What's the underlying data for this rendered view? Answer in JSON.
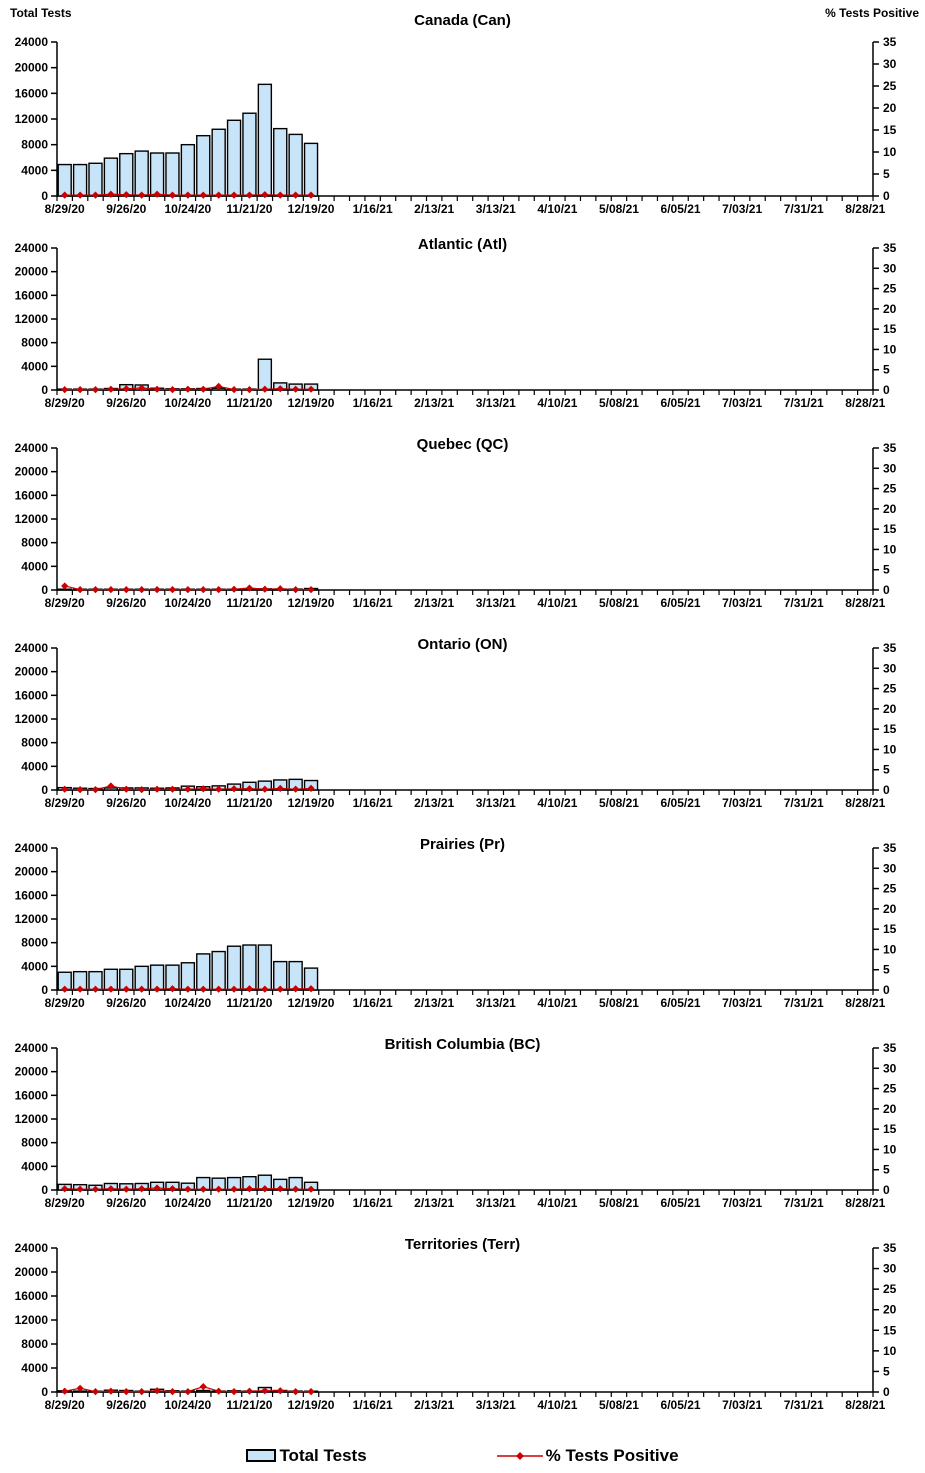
{
  "figure": {
    "left_axis_title": "Total Tests",
    "right_axis_title": "% Tests Positive",
    "legend": {
      "bars_label": "Total Tests",
      "line_label": "% Tests Positive"
    },
    "colors": {
      "bar_fill": "#C8E4F8",
      "bar_stroke": "#000000",
      "line": "#CC0000",
      "axis": "#000000",
      "text": "#000000"
    }
  },
  "axes": {
    "x_tick_labels": [
      "8/29/20",
      "9/26/20",
      "10/24/20",
      "11/21/20",
      "12/19/20",
      "1/16/21",
      "2/13/21",
      "3/13/21",
      "4/10/21",
      "5/08/21",
      "6/05/21",
      "7/03/21",
      "7/31/21",
      "8/28/21"
    ],
    "weeks_total": 53,
    "label_every_weeks": 4,
    "data_weeks": [
      "8/29/20",
      "9/05/20",
      "9/12/20",
      "9/19/20",
      "9/26/20",
      "10/03/20",
      "10/10/20",
      "10/17/20",
      "10/24/20",
      "10/31/20",
      "11/07/20",
      "11/14/20",
      "11/21/20",
      "11/28/20",
      "12/05/20",
      "12/12/20",
      "12/19/20"
    ],
    "y_left": {
      "title": "Total Tests",
      "min": 0,
      "max": 24000,
      "step": 4000
    },
    "y_right": {
      "title": "% Tests Positive",
      "min": 0,
      "max": 35,
      "step": 5
    },
    "grid": false
  },
  "chart_data": [
    {
      "type": "bar+line",
      "title": "Canada (Can)",
      "series": [
        {
          "name": "Total Tests",
          "type": "bar",
          "axis": "left",
          "values": [
            4900,
            4900,
            5100,
            5900,
            6600,
            7000,
            6700,
            6700,
            8000,
            9400,
            10400,
            11800,
            12900,
            17400,
            10500,
            9600,
            8200
          ]
        },
        {
          "name": "% Tests Positive",
          "type": "line",
          "axis": "right",
          "values": [
            0.2,
            0.2,
            0.2,
            0.4,
            0.3,
            0.2,
            0.4,
            0.2,
            0.2,
            0.2,
            0.2,
            0.2,
            0.2,
            0.3,
            0.2,
            0.2,
            0.2
          ]
        }
      ]
    },
    {
      "type": "bar+line",
      "title": "Atlantic (Atl)",
      "series": [
        {
          "name": "Total Tests",
          "type": "bar",
          "axis": "left",
          "values": [
            150,
            150,
            150,
            250,
            900,
            850,
            300,
            200,
            200,
            250,
            300,
            150,
            150,
            5200,
            1200,
            1000,
            1000
          ]
        },
        {
          "name": "% Tests Positive",
          "type": "line",
          "axis": "right",
          "values": [
            0.1,
            0.1,
            0.1,
            0.2,
            0.3,
            0.5,
            0.2,
            0.1,
            0.2,
            0.2,
            0.9,
            0.1,
            0.1,
            0.2,
            0.3,
            0.2,
            0.2
          ]
        }
      ]
    },
    {
      "type": "bar+line",
      "title": "Quebec (QC)",
      "series": [
        {
          "name": "Total Tests",
          "type": "bar",
          "axis": "left",
          "values": [
            100,
            80,
            80,
            80,
            80,
            80,
            80,
            80,
            80,
            80,
            80,
            100,
            200,
            200,
            150,
            150,
            250
          ]
        },
        {
          "name": "% Tests Positive",
          "type": "line",
          "axis": "right",
          "values": [
            1.0,
            0.1,
            0.1,
            0.1,
            0.1,
            0.1,
            0.1,
            0.1,
            0.1,
            0.1,
            0.1,
            0.2,
            0.5,
            0.2,
            0.3,
            0.1,
            0.1
          ]
        }
      ]
    },
    {
      "type": "bar+line",
      "title": "Ontario (ON)",
      "series": [
        {
          "name": "Total Tests",
          "type": "bar",
          "axis": "left",
          "values": [
            400,
            300,
            250,
            350,
            350,
            350,
            300,
            350,
            650,
            550,
            700,
            1000,
            1300,
            1500,
            1700,
            1800,
            1600
          ]
        },
        {
          "name": "% Tests Positive",
          "type": "line",
          "axis": "right",
          "values": [
            0.2,
            0.1,
            0.1,
            1.0,
            0.2,
            0.1,
            0.2,
            0.2,
            0.2,
            0.3,
            0.2,
            0.3,
            0.3,
            0.2,
            0.4,
            0.2,
            0.4
          ]
        }
      ]
    },
    {
      "type": "bar+line",
      "title": "Prairies (Pr)",
      "series": [
        {
          "name": "Total Tests",
          "type": "bar",
          "axis": "left",
          "values": [
            3000,
            3100,
            3100,
            3500,
            3500,
            4000,
            4200,
            4200,
            4600,
            6100,
            6500,
            7400,
            7600,
            7600,
            4800,
            4800,
            3700
          ]
        },
        {
          "name": "% Tests Positive",
          "type": "line",
          "axis": "right",
          "values": [
            0.2,
            0.2,
            0.2,
            0.2,
            0.2,
            0.2,
            0.2,
            0.3,
            0.2,
            0.2,
            0.2,
            0.2,
            0.3,
            0.2,
            0.2,
            0.3,
            0.3
          ]
        }
      ]
    },
    {
      "type": "bar+line",
      "title": "British Columbia (BC)",
      "series": [
        {
          "name": "Total Tests",
          "type": "bar",
          "axis": "left",
          "values": [
            950,
            900,
            800,
            1100,
            1050,
            1100,
            1300,
            1300,
            1150,
            2100,
            2000,
            2100,
            2250,
            2500,
            1800,
            2100,
            1300
          ]
        },
        {
          "name": "% Tests Positive",
          "type": "line",
          "axis": "right",
          "values": [
            0.3,
            0.2,
            0.2,
            0.3,
            0.2,
            0.3,
            0.5,
            0.3,
            0.2,
            0.2,
            0.2,
            0.2,
            0.3,
            0.3,
            0.3,
            0.2,
            0.2
          ]
        }
      ]
    },
    {
      "type": "bar+line",
      "title": "Territories (Terr)",
      "series": [
        {
          "name": "Total Tests",
          "type": "bar",
          "axis": "left",
          "values": [
            200,
            150,
            100,
            300,
            250,
            100,
            450,
            200,
            150,
            250,
            150,
            200,
            150,
            750,
            250,
            150,
            100
          ]
        },
        {
          "name": "% Tests Positive",
          "type": "line",
          "axis": "right",
          "values": [
            0.2,
            0.9,
            0.1,
            0.2,
            0.1,
            0.1,
            0.3,
            0.1,
            0.1,
            1.3,
            0.2,
            0.1,
            0.2,
            0.3,
            0.3,
            0.1,
            0.1
          ]
        }
      ]
    }
  ]
}
